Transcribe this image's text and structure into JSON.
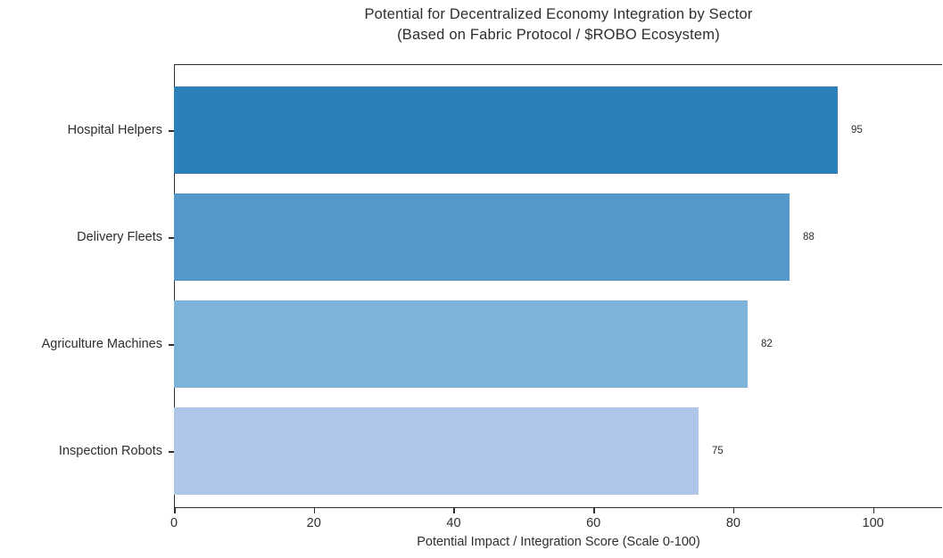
{
  "chart_data": {
    "type": "bar",
    "orientation": "horizontal",
    "title": "Potential for Decentralized Economy Integration by Sector",
    "subtitle": "(Based on Fabric Protocol / $ROBO Ecosystem)",
    "categories": [
      "Hospital Helpers",
      "Delivery Fleets",
      "Agriculture Machines",
      "Inspection Robots"
    ],
    "values": [
      95,
      88,
      82,
      75
    ],
    "value_labels": [
      "95",
      "88",
      "82",
      "75"
    ],
    "bar_colors": [
      "#2c80b9",
      "#5599cb",
      "#7db3d8",
      "#aec7e8"
    ],
    "xlabel": "Potential Impact / Integration Score (Scale 0-100)",
    "ylabel": "",
    "xlim": [
      0,
      110
    ],
    "xticks": [
      0,
      20,
      40,
      60,
      80,
      100
    ],
    "grid": false,
    "legend": null,
    "axis_color": "#2e2e2e",
    "background_color": "#ffffff"
  }
}
